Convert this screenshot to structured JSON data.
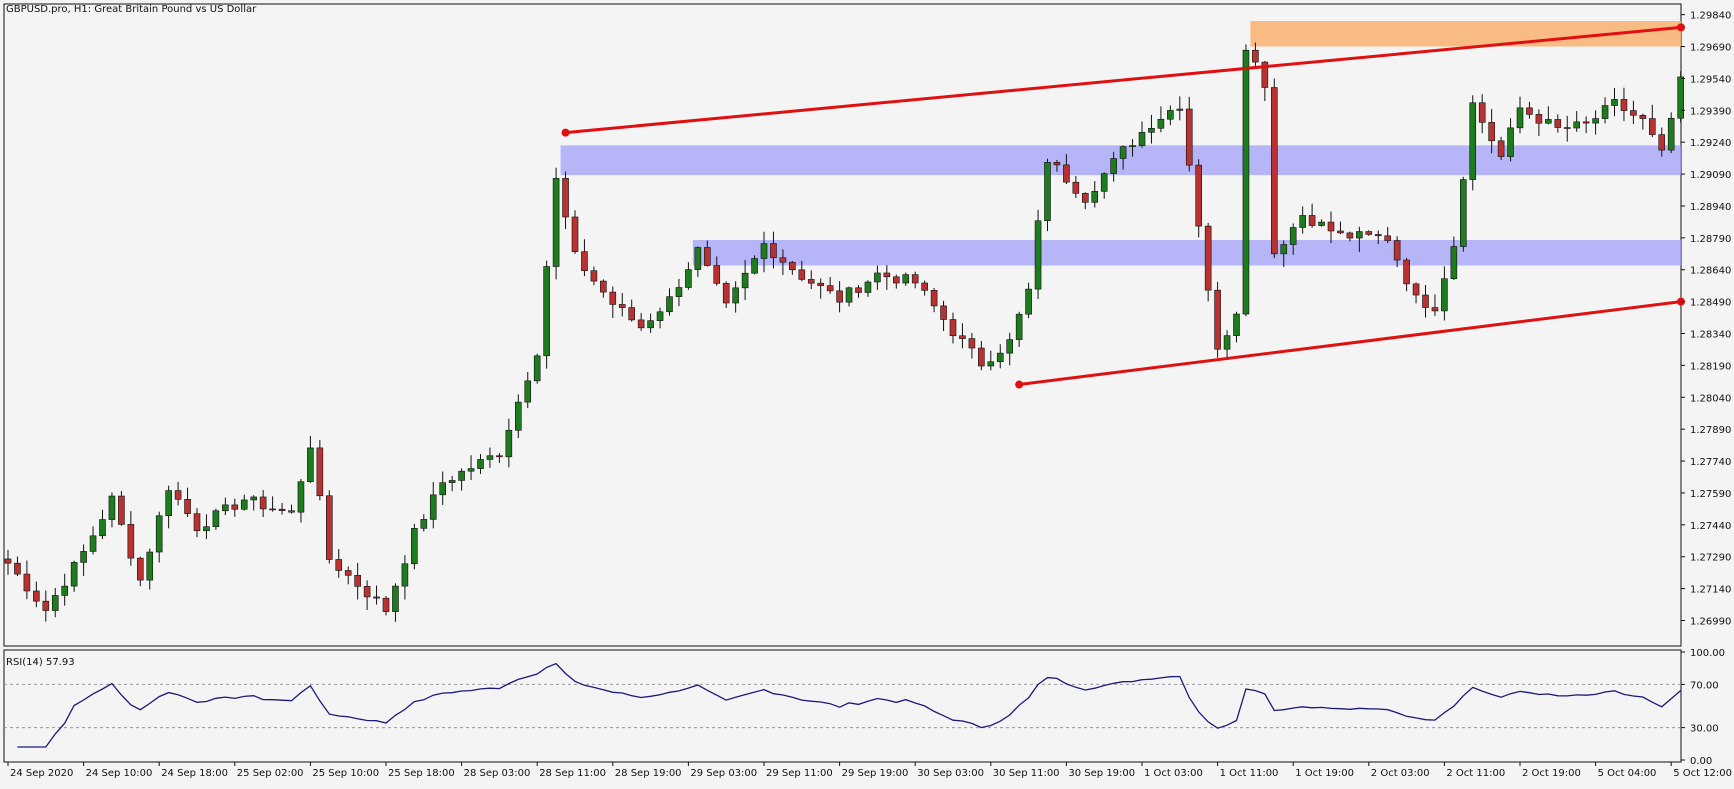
{
  "chart_data": {
    "type": "candlestick",
    "title": "GBPUSD.pro, H1:  Great Britain Pound vs US Dollar",
    "y_axis": {
      "range": [
        1.2687,
        1.2989
      ],
      "ticks": [
        "1.29840",
        "1.29690",
        "1.29540",
        "1.29390",
        "1.29240",
        "1.29090",
        "1.28940",
        "1.28790",
        "1.28640",
        "1.28490",
        "1.28340",
        "1.28190",
        "1.28040",
        "1.27890",
        "1.27740",
        "1.27590",
        "1.27440",
        "1.27290",
        "1.27140",
        "1.26990"
      ]
    },
    "x_axis": {
      "bars": 178,
      "ticks": [
        {
          "label": "24 Sep 2020",
          "bar": 0
        },
        {
          "label": "24 Sep 10:00",
          "bar": 8
        },
        {
          "label": "24 Sep 18:00",
          "bar": 16
        },
        {
          "label": "25 Sep 02:00",
          "bar": 24
        },
        {
          "label": "25 Sep 10:00",
          "bar": 32
        },
        {
          "label": "25 Sep 18:00",
          "bar": 40
        },
        {
          "label": "28 Sep 03:00",
          "bar": 48
        },
        {
          "label": "28 Sep 11:00",
          "bar": 56
        },
        {
          "label": "28 Sep 19:00",
          "bar": 64
        },
        {
          "label": "29 Sep 03:00",
          "bar": 72
        },
        {
          "label": "29 Sep 11:00",
          "bar": 80
        },
        {
          "label": "29 Sep 19:00",
          "bar": 88
        },
        {
          "label": "30 Sep 03:00",
          "bar": 96
        },
        {
          "label": "30 Sep 11:00",
          "bar": 104
        },
        {
          "label": "30 Sep 19:00",
          "bar": 112
        },
        {
          "label": "1 Oct 03:00",
          "bar": 120
        },
        {
          "label": "1 Oct 11:00",
          "bar": 128
        },
        {
          "label": "1 Oct 19:00",
          "bar": 136
        },
        {
          "label": "2 Oct 03:00",
          "bar": 144
        },
        {
          "label": "2 Oct 11:00",
          "bar": 152
        },
        {
          "label": "2 Oct 19:00",
          "bar": 160
        },
        {
          "label": "5 Oct 04:00",
          "bar": 168
        },
        {
          "label": "5 Oct 12:00",
          "bar": 176
        }
      ]
    },
    "colors": {
      "bull": "#1e7b1e",
      "bear": "#b83232",
      "trendline": "#e01010",
      "zone": "#a0a0f8",
      "resistance_zone": "#f8b070",
      "rsi_line": "#1a1a7a",
      "background": "#f4f4f4",
      "grid": "#c8c8c8"
    },
    "anchors": [
      {
        "bar": 0,
        "price": 1.2726
      },
      {
        "bar": 4,
        "price": 1.2704
      },
      {
        "bar": 8,
        "price": 1.2731
      },
      {
        "bar": 11,
        "price": 1.2756
      },
      {
        "bar": 14,
        "price": 1.2718
      },
      {
        "bar": 17,
        "price": 1.2762
      },
      {
        "bar": 20,
        "price": 1.2743
      },
      {
        "bar": 25,
        "price": 1.2756
      },
      {
        "bar": 30,
        "price": 1.2749
      },
      {
        "bar": 32,
        "price": 1.2782
      },
      {
        "bar": 34,
        "price": 1.2728
      },
      {
        "bar": 37,
        "price": 1.2716
      },
      {
        "bar": 40,
        "price": 1.2704
      },
      {
        "bar": 43,
        "price": 1.274
      },
      {
        "bar": 46,
        "price": 1.2764
      },
      {
        "bar": 52,
        "price": 1.2778
      },
      {
        "bar": 56,
        "price": 1.2826
      },
      {
        "bar": 58,
        "price": 1.2906
      },
      {
        "bar": 60,
        "price": 1.287
      },
      {
        "bar": 64,
        "price": 1.2848
      },
      {
        "bar": 67,
        "price": 1.2837
      },
      {
        "bar": 70,
        "price": 1.285
      },
      {
        "bar": 73,
        "price": 1.2873
      },
      {
        "bar": 76,
        "price": 1.2846
      },
      {
        "bar": 80,
        "price": 1.2876
      },
      {
        "bar": 84,
        "price": 1.2861
      },
      {
        "bar": 88,
        "price": 1.285
      },
      {
        "bar": 92,
        "price": 1.2862
      },
      {
        "bar": 96,
        "price": 1.2858
      },
      {
        "bar": 100,
        "price": 1.2835
      },
      {
        "bar": 103,
        "price": 1.282
      },
      {
        "bar": 106,
        "price": 1.283
      },
      {
        "bar": 108,
        "price": 1.2854
      },
      {
        "bar": 110,
        "price": 1.2916
      },
      {
        "bar": 114,
        "price": 1.2898
      },
      {
        "bar": 118,
        "price": 1.292
      },
      {
        "bar": 121,
        "price": 1.2933
      },
      {
        "bar": 124,
        "price": 1.2942
      },
      {
        "bar": 126,
        "price": 1.2886
      },
      {
        "bar": 128,
        "price": 1.2825
      },
      {
        "bar": 130,
        "price": 1.2845
      },
      {
        "bar": 131,
        "price": 1.297
      },
      {
        "bar": 133,
        "price": 1.2952
      },
      {
        "bar": 134,
        "price": 1.2872
      },
      {
        "bar": 137,
        "price": 1.289
      },
      {
        "bar": 141,
        "price": 1.288
      },
      {
        "bar": 146,
        "price": 1.2879
      },
      {
        "bar": 149,
        "price": 1.285
      },
      {
        "bar": 151,
        "price": 1.2847
      },
      {
        "bar": 153,
        "price": 1.2876
      },
      {
        "bar": 155,
        "price": 1.2942
      },
      {
        "bar": 158,
        "price": 1.2917
      },
      {
        "bar": 160,
        "price": 1.294
      },
      {
        "bar": 164,
        "price": 1.293
      },
      {
        "bar": 167,
        "price": 1.2932
      },
      {
        "bar": 170,
        "price": 1.2942
      },
      {
        "bar": 173,
        "price": 1.2934
      },
      {
        "bar": 175,
        "price": 1.2918
      },
      {
        "bar": 177,
        "price": 1.2952
      }
    ],
    "annotations": {
      "trendlines": [
        {
          "from": {
            "bar": 59,
            "price": 1.29285
          },
          "to": {
            "bar": 180,
            "price": 1.2978
          },
          "endpoint_markers": true
        },
        {
          "from": {
            "bar": 107,
            "price": 1.281
          },
          "to": {
            "bar": 180,
            "price": 1.2849
          },
          "endpoint_markers": true
        }
      ],
      "zones": [
        {
          "type": "support",
          "bar_from": 59,
          "bar_to": 180,
          "price_top": 1.29225,
          "price_bottom": 1.29085
        },
        {
          "type": "support",
          "bar_from": 73,
          "bar_to": 180,
          "price_top": 1.2878,
          "price_bottom": 1.2866
        },
        {
          "type": "resistance",
          "bar_from": 132,
          "bar_to": 180,
          "price_top": 1.2981,
          "price_bottom": 1.2969
        }
      ]
    },
    "rsi": {
      "label": "RSI(14) 57.93",
      "period": 14,
      "last": 57.93,
      "range": [
        0,
        100
      ],
      "levels": [
        70,
        30
      ],
      "ticks": [
        "100.00",
        "70.00",
        "30.00",
        "0.00"
      ]
    }
  }
}
